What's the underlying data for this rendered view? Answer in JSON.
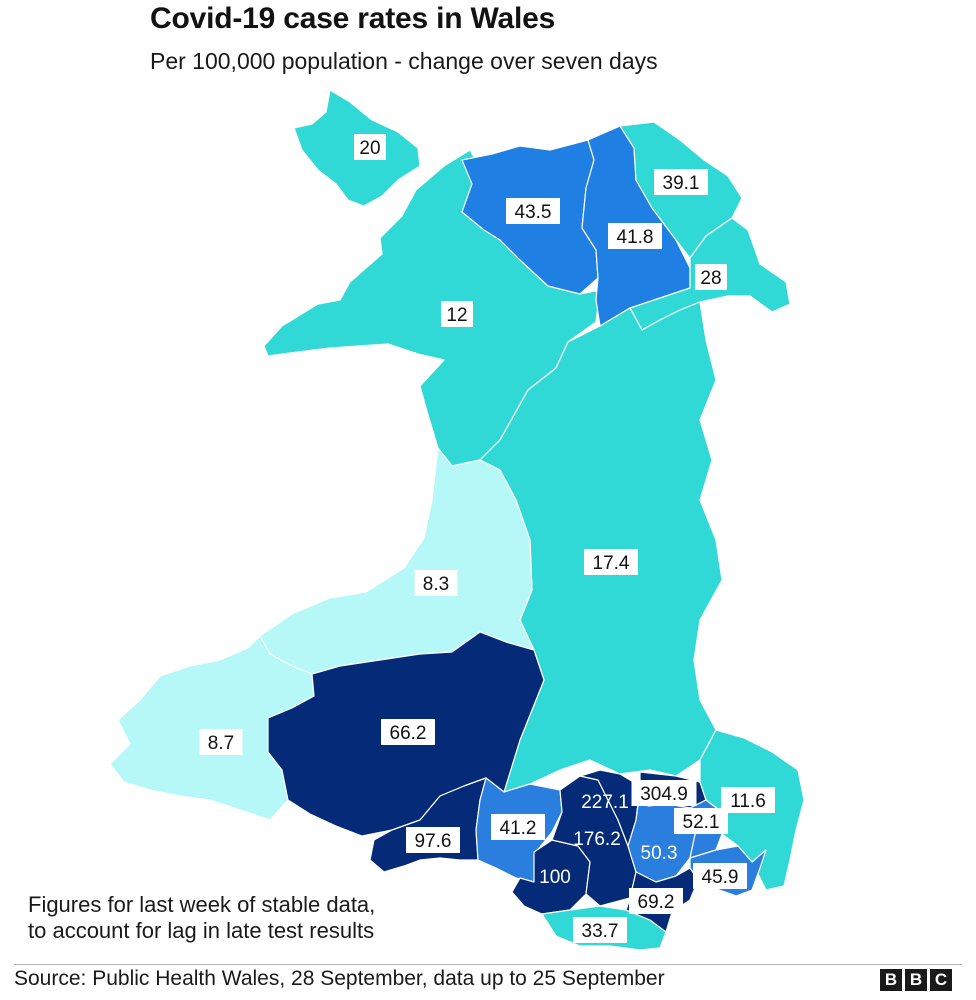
{
  "header": {
    "title": "Covid-19 case rates in Wales",
    "subtitle": "Per 100,000 population - change over seven days"
  },
  "colors": {
    "light": "#b6f7f8",
    "teal": "#31d9d6",
    "blue": "#1f7fe3",
    "medium_blue": "#2a7fde",
    "dark_navy": "#042a78",
    "background": "#ffffff"
  },
  "map": {
    "regions": [
      {
        "id": "anglesey",
        "value": "20",
        "color": "teal"
      },
      {
        "id": "gwynedd",
        "value": "12",
        "color": "teal"
      },
      {
        "id": "conwy",
        "value": "43.5",
        "color": "blue"
      },
      {
        "id": "denbighshire",
        "value": "41.8",
        "color": "blue"
      },
      {
        "id": "flintshire",
        "value": "39.1",
        "color": "teal"
      },
      {
        "id": "wrexham",
        "value": "28",
        "color": "teal"
      },
      {
        "id": "powys",
        "value": "17.4",
        "color": "teal"
      },
      {
        "id": "ceredigion",
        "value": "8.3",
        "color": "light"
      },
      {
        "id": "pembrokeshire",
        "value": "8.7",
        "color": "light"
      },
      {
        "id": "carmarthenshire",
        "value": "66.2",
        "color": "dark_navy"
      },
      {
        "id": "swansea",
        "value": "97.6",
        "color": "dark_navy"
      },
      {
        "id": "neath-port-talbot",
        "value": "41.2",
        "color": "medium_blue"
      },
      {
        "id": "bridgend",
        "value": "100",
        "color": "dark_navy"
      },
      {
        "id": "vale-of-glamorgan",
        "value": "33.7",
        "color": "teal"
      },
      {
        "id": "rhondda-cynon-taf",
        "value": "176.2",
        "color": "dark_navy"
      },
      {
        "id": "merthyr-tydfil",
        "value": "227.1",
        "color": "dark_navy"
      },
      {
        "id": "blaenau-gwent",
        "value": "304.9",
        "color": "dark_navy"
      },
      {
        "id": "caerphilly",
        "value": "50.3",
        "color": "medium_blue"
      },
      {
        "id": "torfaen",
        "value": "52.1",
        "color": "medium_blue"
      },
      {
        "id": "monmouthshire",
        "value": "11.6",
        "color": "teal"
      },
      {
        "id": "newport",
        "value": "45.9",
        "color": "medium_blue"
      },
      {
        "id": "cardiff",
        "value": "69.2",
        "color": "dark_navy"
      }
    ]
  },
  "footer": {
    "note_line1": "Figures for last week of stable data,",
    "note_line2": "to account for lag in late test results",
    "source": "Source: Public Health Wales, 28 September, data up to 25 September",
    "logo": [
      "B",
      "B",
      "C"
    ]
  }
}
